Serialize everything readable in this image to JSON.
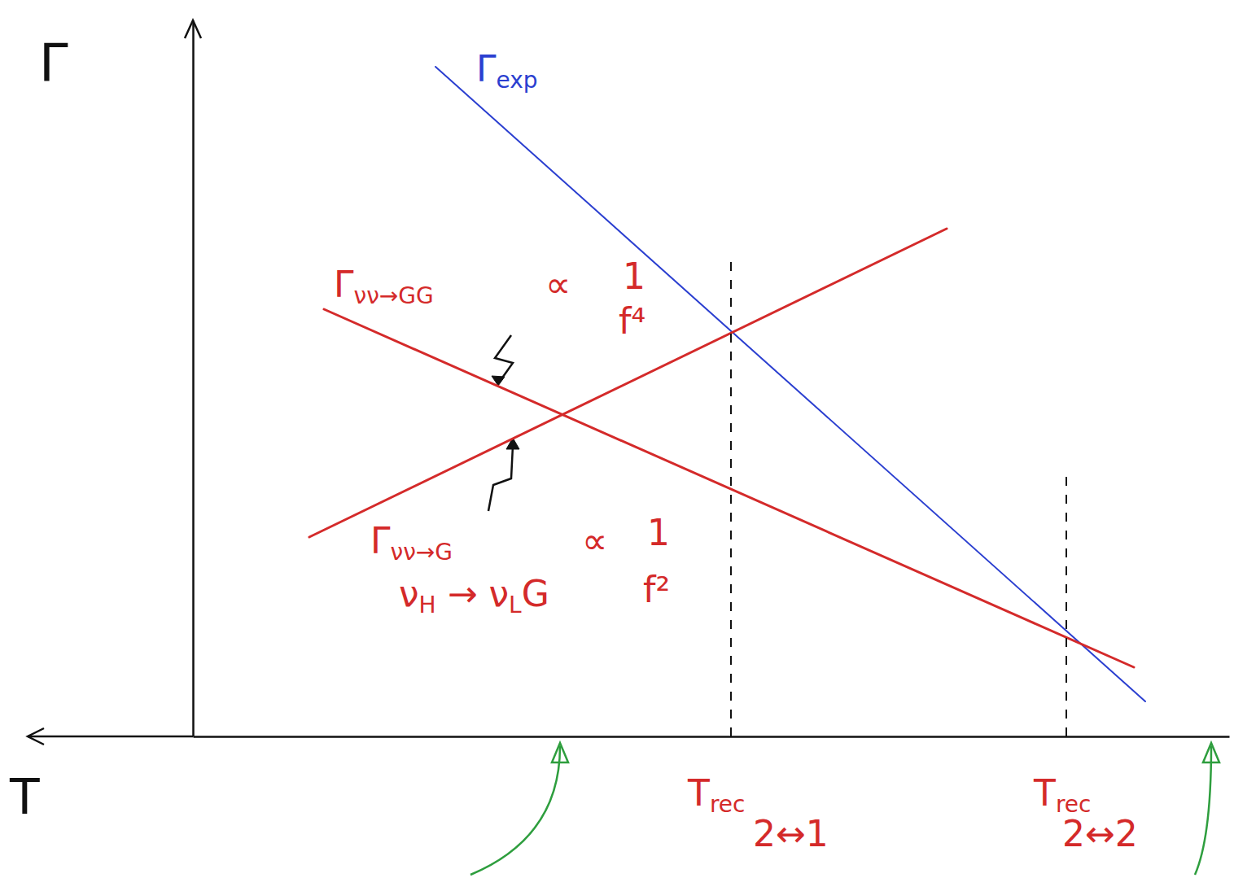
{
  "chart_data": {
    "type": "line",
    "x_label": "T",
    "y_label": "Γ",
    "xlim": [
      -1,
      126.3
    ],
    "ylim": [
      0,
      88
    ],
    "xticks": [],
    "yticks": [],
    "tick_labels": false,
    "grid": false,
    "series": [
      {
        "color": "#2b3fd0",
        "x": [
          96.5,
          9.3
        ],
        "values": [
          82.3,
          4.3
        ]
      },
      {
        "color": "#d42a2a",
        "x": [
          110.2,
          10.7
        ],
        "values": [
          52.5,
          8.5
        ]
      },
      {
        "color": "#d42a2a",
        "x": [
          112,
          33.7
        ],
        "values": [
          24.5,
          62.4
        ]
      }
    ],
    "vlines": [
      {
        "x": 60.2,
        "y": 59
      },
      {
        "x": 19,
        "y": 32
      }
    ],
    "markers": {
      "x": [
        81.2,
        1.2
      ],
      "color": "#2e9e3e"
    },
    "annotations": [
      {
        "x": 91.5,
        "y": 80.5,
        "color": "#2b3fd0",
        "pieces": [
          {
            "text": "Γ"
          },
          {
            "sub": "exp"
          }
        ]
      },
      {
        "x": 109,
        "y": 54,
        "color": "#d42a2a",
        "pieces": [
          {
            "text": "Γ"
          },
          {
            "sub": "νν→GG"
          }
        ]
      },
      {
        "x": 83,
        "y": 54,
        "color": "#d42a2a",
        "pieces": [
          {
            "text": "∝"
          }
        ]
      },
      {
        "x": 73.5,
        "y": 55,
        "color": "#d42a2a",
        "pieces": [
          {
            "text": "1"
          }
        ]
      },
      {
        "x": 74,
        "y": 49.5,
        "color": "#d42a2a",
        "pieces": [
          {
            "text": "f⁴"
          }
        ]
      },
      {
        "x": 104.5,
        "y": 22.5,
        "color": "#d42a2a",
        "pieces": [
          {
            "text": "Γ"
          },
          {
            "sub": "νν→G"
          }
        ]
      },
      {
        "x": 78.5,
        "y": 22.5,
        "color": "#d42a2a",
        "pieces": [
          {
            "text": "∝"
          }
        ]
      },
      {
        "x": 70.5,
        "y": 23.5,
        "color": "#d42a2a",
        "pieces": [
          {
            "text": "1"
          }
        ]
      },
      {
        "x": 71,
        "y": 16.5,
        "color": "#d42a2a",
        "pieces": [
          {
            "text": "f²"
          }
        ]
      },
      {
        "x": 101,
        "y": 16,
        "color": "#d42a2a",
        "pieces": [
          {
            "text": "ν"
          },
          {
            "sub": "H"
          },
          {
            "text": " → ν"
          },
          {
            "sub": "L"
          },
          {
            "text": "G"
          }
        ]
      },
      {
        "x": 65.5,
        "y": -8.5,
        "color": "#d42a2a",
        "pieces": [
          {
            "text": "T"
          },
          {
            "sub": "rec"
          }
        ]
      },
      {
        "x": 57.5,
        "y": -13.5,
        "color": "#d42a2a",
        "pieces": [
          {
            "text": "2↔1"
          }
        ]
      },
      {
        "x": 23,
        "y": -8.5,
        "color": "#d42a2a",
        "pieces": [
          {
            "text": "T"
          },
          {
            "sub": "rec"
          }
        ]
      },
      {
        "x": 19.5,
        "y": -13.5,
        "color": "#d42a2a",
        "pieces": [
          {
            "text": "2↔2"
          }
        ]
      }
    ]
  }
}
